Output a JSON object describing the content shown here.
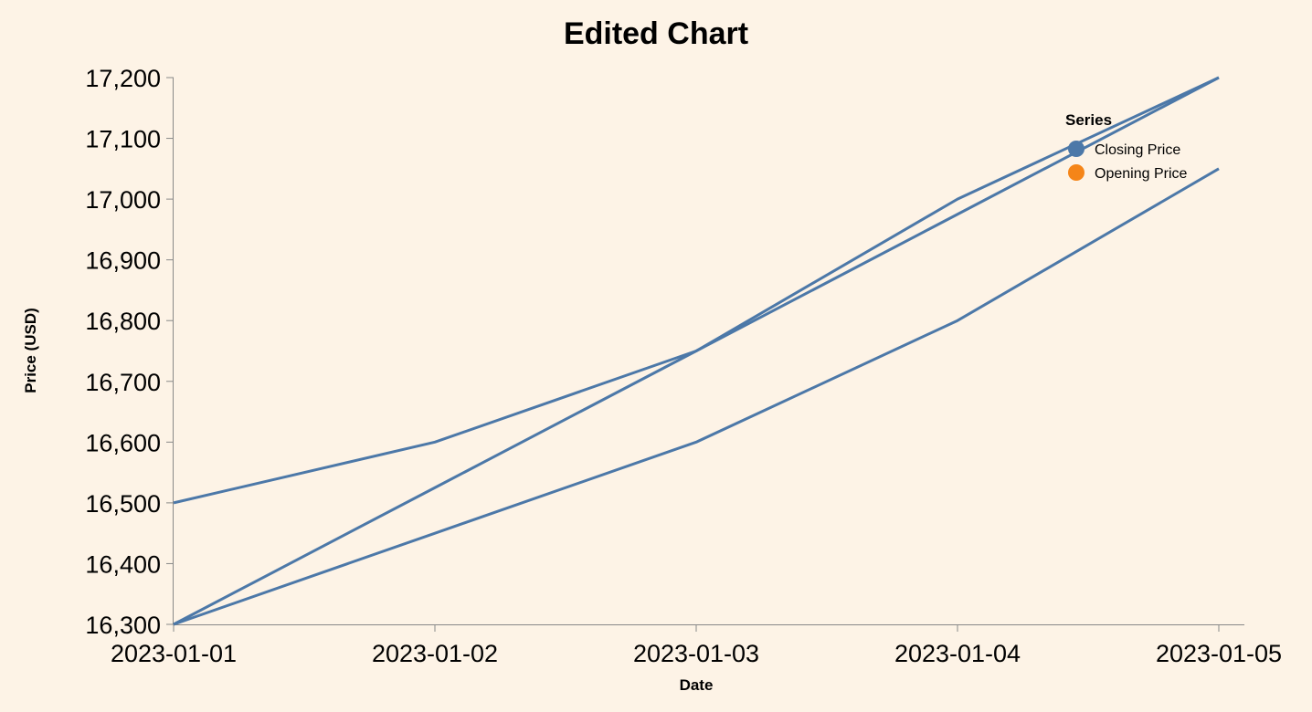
{
  "chart_data": {
    "type": "line",
    "title": "Edited Chart",
    "xlabel": "Date",
    "ylabel": "Price (USD)",
    "x": [
      "2023-01-01",
      "2023-01-02",
      "2023-01-03",
      "2023-01-04",
      "2023-01-05"
    ],
    "yticks": [
      16300,
      16400,
      16500,
      16600,
      16700,
      16800,
      16900,
      17000,
      17100,
      17200
    ],
    "ylim": [
      16300,
      17200
    ],
    "grid": false,
    "legend": {
      "title": "Series",
      "placement": "top-right",
      "entries": [
        {
          "name": "Closing Price",
          "color": "#4c78a8"
        },
        {
          "name": "Opening Price",
          "color": "#f58518"
        }
      ]
    },
    "line_color": "#4c78a8",
    "series": [
      {
        "values": [
          16500,
          16600,
          16750,
          17000,
          17200
        ]
      },
      {
        "values": [
          16300,
          16450,
          16600,
          16800,
          17050
        ]
      },
      {
        "values": [
          16300,
          16525,
          16750,
          16975,
          17200
        ]
      }
    ]
  },
  "colors": {
    "background": "#fdf3e6",
    "axis": "#888888"
  }
}
